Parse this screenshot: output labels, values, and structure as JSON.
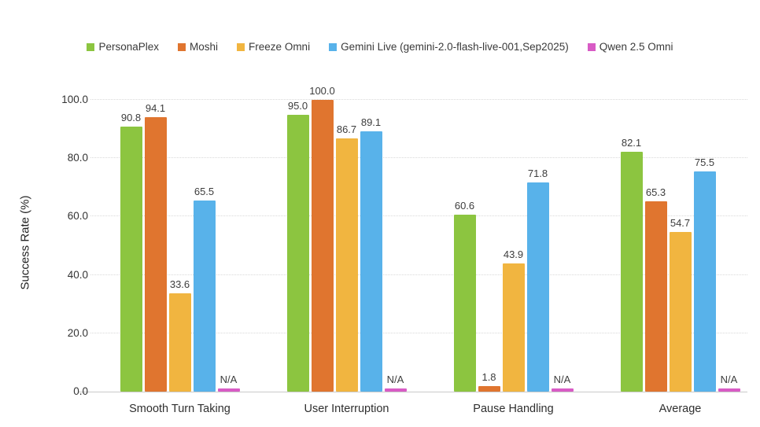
{
  "chart_data": {
    "type": "bar",
    "title": "",
    "ylabel": "Success Rate (%)",
    "xlabel": "",
    "ylim": [
      0,
      100
    ],
    "yticks": [
      0,
      20,
      40,
      60,
      80,
      100
    ],
    "ytick_labels": [
      "0.0",
      "20.0",
      "40.0",
      "60.0",
      "80.0",
      "100.0"
    ],
    "grid": "dotted-horizontal",
    "legend_position": "top",
    "categories": [
      "Smooth Turn Taking",
      "User Interruption",
      "Pause Handling",
      "Average"
    ],
    "series": [
      {
        "name": "PersonaPlex",
        "color": "#8CC540",
        "values": [
          90.8,
          95.0,
          60.6,
          82.1
        ]
      },
      {
        "name": "Moshi",
        "color": "#E0752F",
        "values": [
          94.1,
          100.0,
          1.8,
          65.3
        ]
      },
      {
        "name": "Freeze Omni",
        "color": "#F1B540",
        "values": [
          33.6,
          86.7,
          43.9,
          54.7
        ]
      },
      {
        "name": "Gemini Live (gemini-2.0-flash-live-001,Sep2025)",
        "color": "#58B2EA",
        "values": [
          65.5,
          89.1,
          71.8,
          75.5
        ]
      },
      {
        "name": "Qwen 2.5 Omni",
        "color": "#D85BC5",
        "values": [
          null,
          null,
          null,
          null
        ]
      }
    ],
    "na_label": "N/A",
    "na_bar_height_units": 1.0,
    "colors": {
      "background": "#ffffff",
      "gridline": "#d9d9d9",
      "axis_line": "#c9c9c9",
      "text": "#333333"
    }
  }
}
